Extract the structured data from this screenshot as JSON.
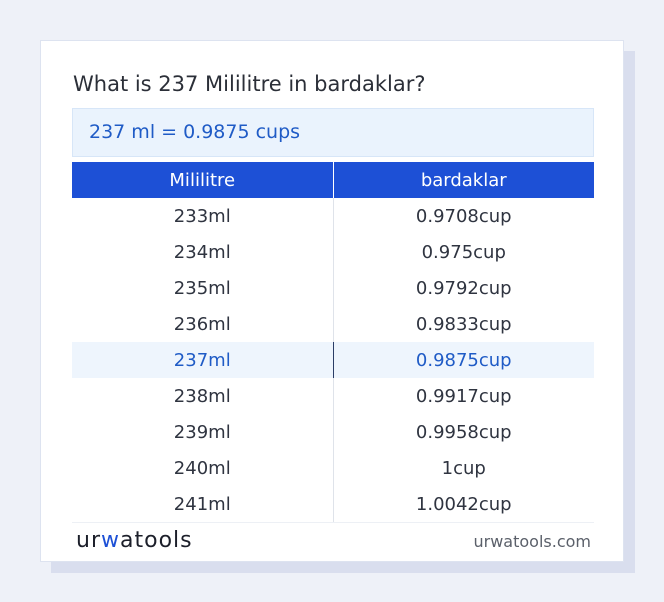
{
  "heading": "What is 237 Mililitre in bardaklar?",
  "result_text": "237 ml = 0.9875 cups",
  "table": {
    "headers": [
      "Mililitre",
      "bardaklar"
    ],
    "rows": [
      {
        "ml": "233ml",
        "cups": "0.9708cup"
      },
      {
        "ml": "234ml",
        "cups": "0.975cup"
      },
      {
        "ml": "235ml",
        "cups": "0.9792cup"
      },
      {
        "ml": "236ml",
        "cups": "0.9833cup"
      },
      {
        "ml": "237ml",
        "cups": "0.9875cup"
      },
      {
        "ml": "238ml",
        "cups": "0.9917cup"
      },
      {
        "ml": "239ml",
        "cups": "0.9958cup"
      },
      {
        "ml": "240ml",
        "cups": "1cup"
      },
      {
        "ml": "241ml",
        "cups": "1.0042cup"
      }
    ],
    "highlighted_row": 4
  },
  "footer": {
    "logo_part1": "ur",
    "logo_accent": "w",
    "logo_part2": "atools",
    "site": "urwatools.com"
  },
  "colors": {
    "header_bg": "#1d50d6",
    "accent": "#1f5bc6",
    "result_bg": "#eaf3fd",
    "page_bg": "#eef1f8"
  }
}
